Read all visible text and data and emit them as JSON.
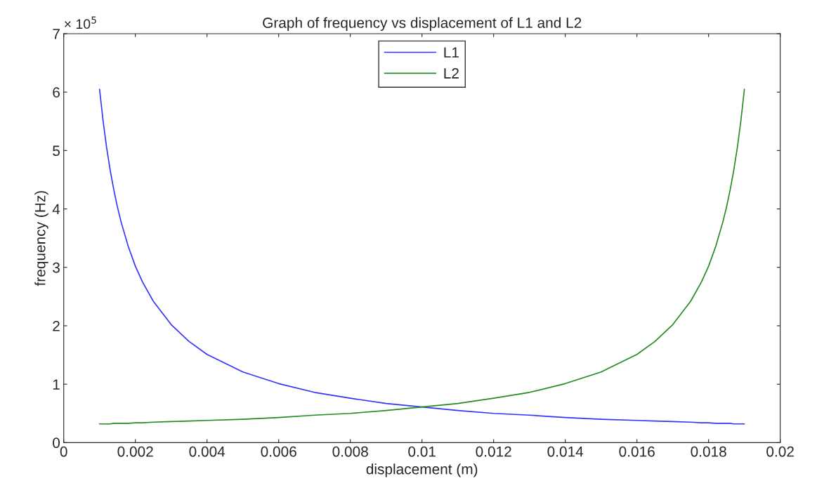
{
  "chart_data": {
    "type": "line",
    "title": "Graph of frequency vs displacement of L1 and L2",
    "xlabel": "displacement (m)",
    "ylabel": "frequency (Hz)",
    "annotations": [
      "× 10$^{5}$"
    ],
    "x": [
      0.001,
      0.0011,
      0.0012,
      0.0013,
      0.0014,
      0.0015,
      0.0016,
      0.0018,
      0.002,
      0.0022,
      0.0025,
      0.003,
      0.0035,
      0.004,
      0.005,
      0.006,
      0.007,
      0.008,
      0.009,
      0.01,
      0.011,
      0.012,
      0.013,
      0.014,
      0.015,
      0.016,
      0.0165,
      0.017,
      0.0175,
      0.0178,
      0.018,
      0.0182,
      0.0184,
      0.0185,
      0.0186,
      0.0187,
      0.0188,
      0.0189,
      0.019
    ],
    "series": [
      {
        "name": "L1",
        "color": "#3333ff",
        "values": [
          6.05,
          5.5,
          5.04,
          4.65,
          4.32,
          4.03,
          3.78,
          3.36,
          3.02,
          2.75,
          2.42,
          2.02,
          1.73,
          1.51,
          1.21,
          1.01,
          0.86,
          0.76,
          0.67,
          0.61,
          0.55,
          0.5,
          0.47,
          0.43,
          0.4,
          0.38,
          0.37,
          0.36,
          0.35,
          0.34,
          0.34,
          0.33,
          0.33,
          0.33,
          0.33,
          0.32,
          0.32,
          0.32,
          0.32
        ]
      },
      {
        "name": "L2",
        "color": "#228b22",
        "values": [
          0.32,
          0.32,
          0.32,
          0.32,
          0.33,
          0.33,
          0.33,
          0.33,
          0.34,
          0.34,
          0.35,
          0.36,
          0.37,
          0.38,
          0.4,
          0.43,
          0.47,
          0.5,
          0.55,
          0.61,
          0.67,
          0.76,
          0.86,
          1.01,
          1.21,
          1.51,
          1.73,
          2.02,
          2.42,
          2.75,
          3.02,
          3.36,
          3.78,
          4.03,
          4.32,
          4.65,
          5.04,
          5.5,
          6.05
        ]
      }
    ],
    "xlim": [
      0,
      0.02
    ],
    "xticks": [
      0,
      0.002,
      0.004,
      0.006,
      0.008,
      0.01,
      0.012,
      0.014,
      0.016,
      0.018,
      0.02
    ],
    "ylim": [
      0,
      7
    ],
    "yticks": [
      0,
      1,
      2,
      3,
      4,
      5,
      6,
      7
    ],
    "legend": "top",
    "grid": false,
    "marker": "none",
    "line_style": "solid"
  }
}
